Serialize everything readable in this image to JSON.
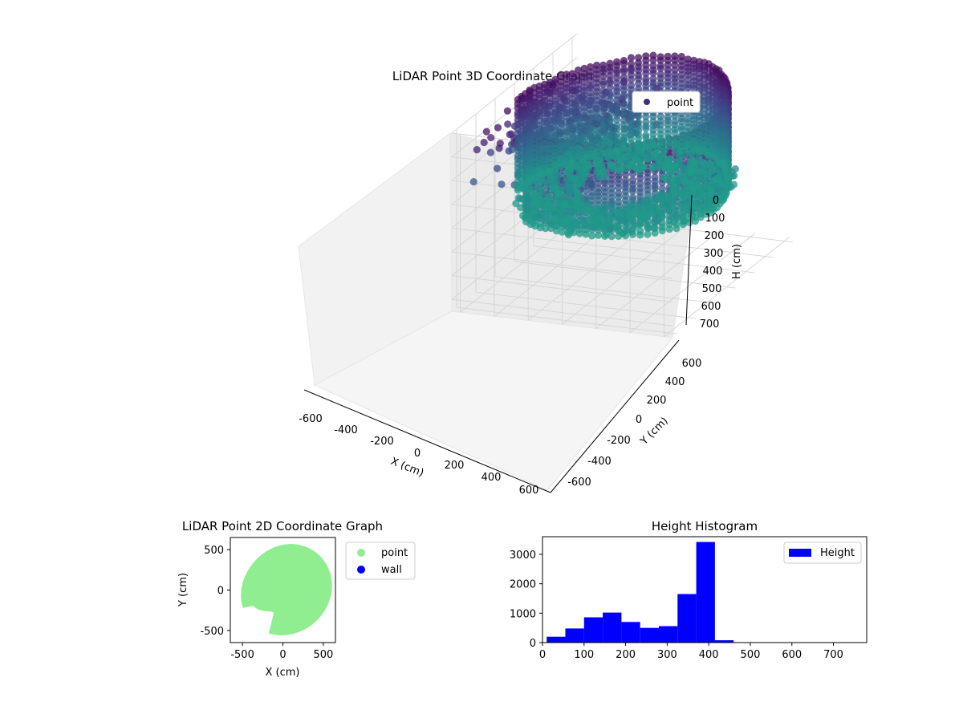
{
  "chart_data": [
    {
      "type": "scatter3d",
      "title": "LiDAR Point 3D Coordinate Graph",
      "xlabel": "X (cm)",
      "ylabel": "Y (cm)",
      "zlabel": "H (cm)",
      "xticks": [
        -600,
        -400,
        -200,
        0,
        200,
        400,
        600
      ],
      "yticks": [
        -600,
        -400,
        -200,
        0,
        200,
        400,
        600
      ],
      "zticks": [
        0,
        100,
        200,
        300,
        400,
        500,
        600,
        700
      ],
      "xlim": [
        -650,
        650
      ],
      "ylim": [
        -650,
        650
      ],
      "zlim": [
        0,
        750
      ],
      "z_inverted": true,
      "grid": true,
      "colormap": "viridis",
      "legend": {
        "placement": "top-right",
        "entries": [
          {
            "label": "point",
            "color": "#472c7a"
          }
        ]
      }
    },
    {
      "type": "scatter",
      "title": "LiDAR Point 2D Coordinate Graph",
      "xlabel": "X (cm)",
      "ylabel": "Y (cm)",
      "xticks": [
        -500,
        0,
        500
      ],
      "yticks": [
        -500,
        0,
        500
      ],
      "xlim": [
        -650,
        650
      ],
      "ylim": [
        -650,
        650
      ],
      "series": [
        {
          "name": "point",
          "color": "#90ee90"
        },
        {
          "name": "wall",
          "color": "#0000ff"
        }
      ],
      "legend": {
        "placement": "outside-right"
      }
    },
    {
      "type": "bar",
      "title": "Height Histogram",
      "xticks": [
        0,
        100,
        200,
        300,
        400,
        500,
        600,
        700
      ],
      "yticks": [
        0,
        1000,
        2000,
        3000
      ],
      "xlim": [
        0,
        780
      ],
      "ylim": [
        0,
        3600
      ],
      "bin_edges": [
        10,
        55,
        100,
        145,
        190,
        235,
        280,
        325,
        370,
        415,
        460,
        505,
        550,
        595,
        640,
        685,
        730,
        775
      ],
      "values": [
        200,
        480,
        860,
        1020,
        700,
        500,
        560,
        1650,
        3420,
        80,
        0,
        0,
        0,
        0,
        0,
        0,
        0
      ],
      "color": "#0000ff",
      "legend": {
        "placement": "top-right",
        "entries": [
          {
            "label": "Height",
            "color": "#0000ff"
          }
        ]
      }
    }
  ]
}
